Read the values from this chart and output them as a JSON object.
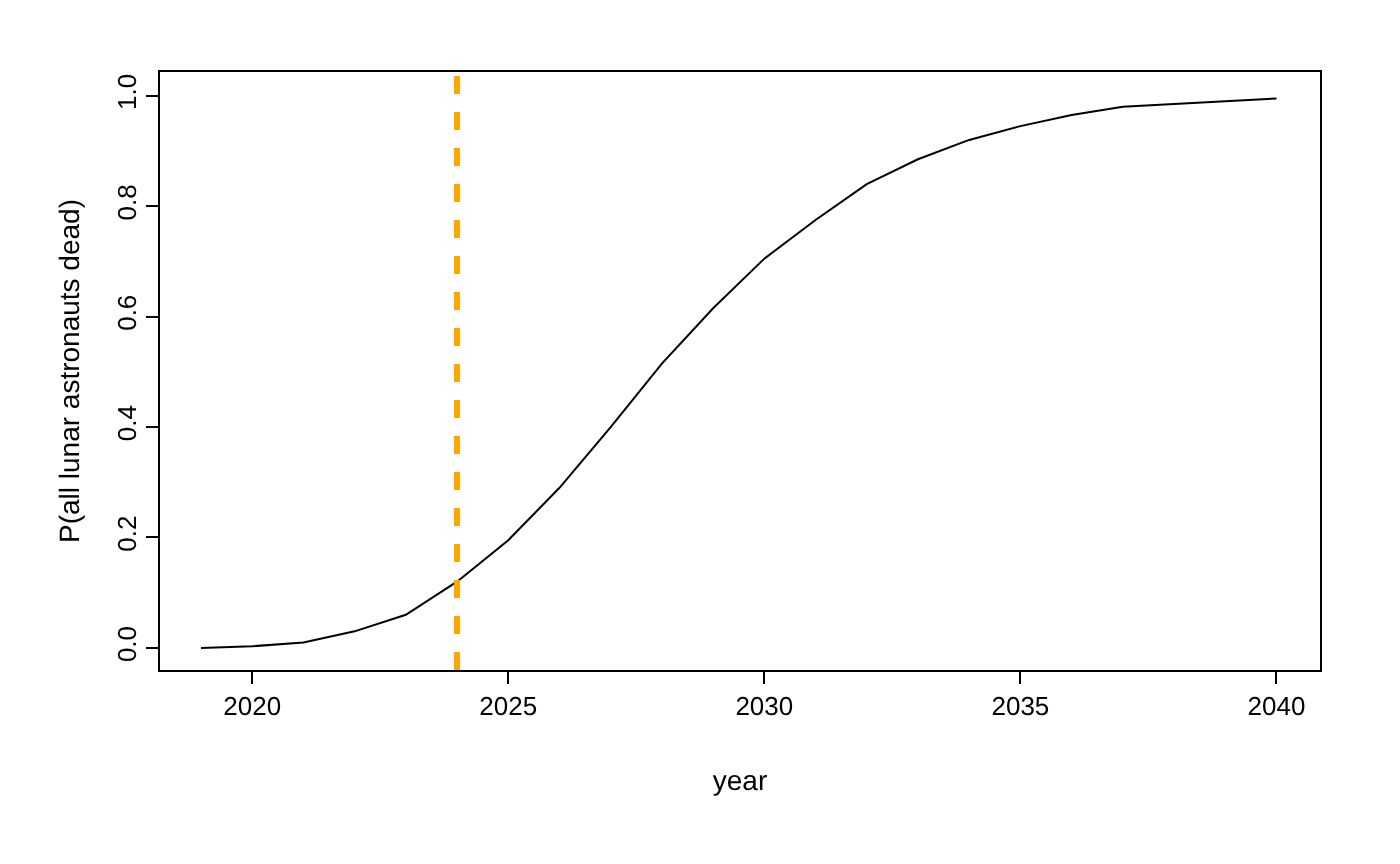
{
  "chart_data": {
    "type": "line",
    "xlabel": "year",
    "ylabel": "P(all lunar astronauts dead)",
    "x": [
      2019,
      2020,
      2021,
      2022,
      2023,
      2024,
      2025,
      2026,
      2027,
      2028,
      2029,
      2030,
      2031,
      2032,
      2033,
      2034,
      2035,
      2036,
      2037,
      2038,
      2039,
      2040
    ],
    "series": [
      {
        "color": "#000000",
        "values": [
          0.0,
          0.003,
          0.01,
          0.03,
          0.06,
          0.12,
          0.195,
          0.29,
          0.4,
          0.515,
          0.615,
          0.705,
          0.775,
          0.84,
          0.885,
          0.92,
          0.945,
          0.965,
          0.98,
          0.985,
          0.99,
          0.995
        ]
      }
    ],
    "xlim": [
      2018.2,
      2040.85
    ],
    "ylim": [
      -0.04,
      1.043
    ],
    "xticks": [
      2020,
      2025,
      2030,
      2035,
      2040
    ],
    "yticks": [
      {
        "value": 0,
        "label": "0.0"
      },
      {
        "value": 0.2,
        "label": "0.2"
      },
      {
        "value": 0.4,
        "label": "0.4"
      },
      {
        "value": 0.6,
        "label": "0.6"
      },
      {
        "value": 0.8,
        "label": "0.8"
      },
      {
        "value": 1,
        "label": "1.0"
      }
    ],
    "ref_lines": [
      {
        "axis": "x",
        "value": 2024,
        "color": "#ffa500",
        "line_style": "dashed"
      }
    ],
    "marker": "none",
    "line_style": "solid"
  }
}
